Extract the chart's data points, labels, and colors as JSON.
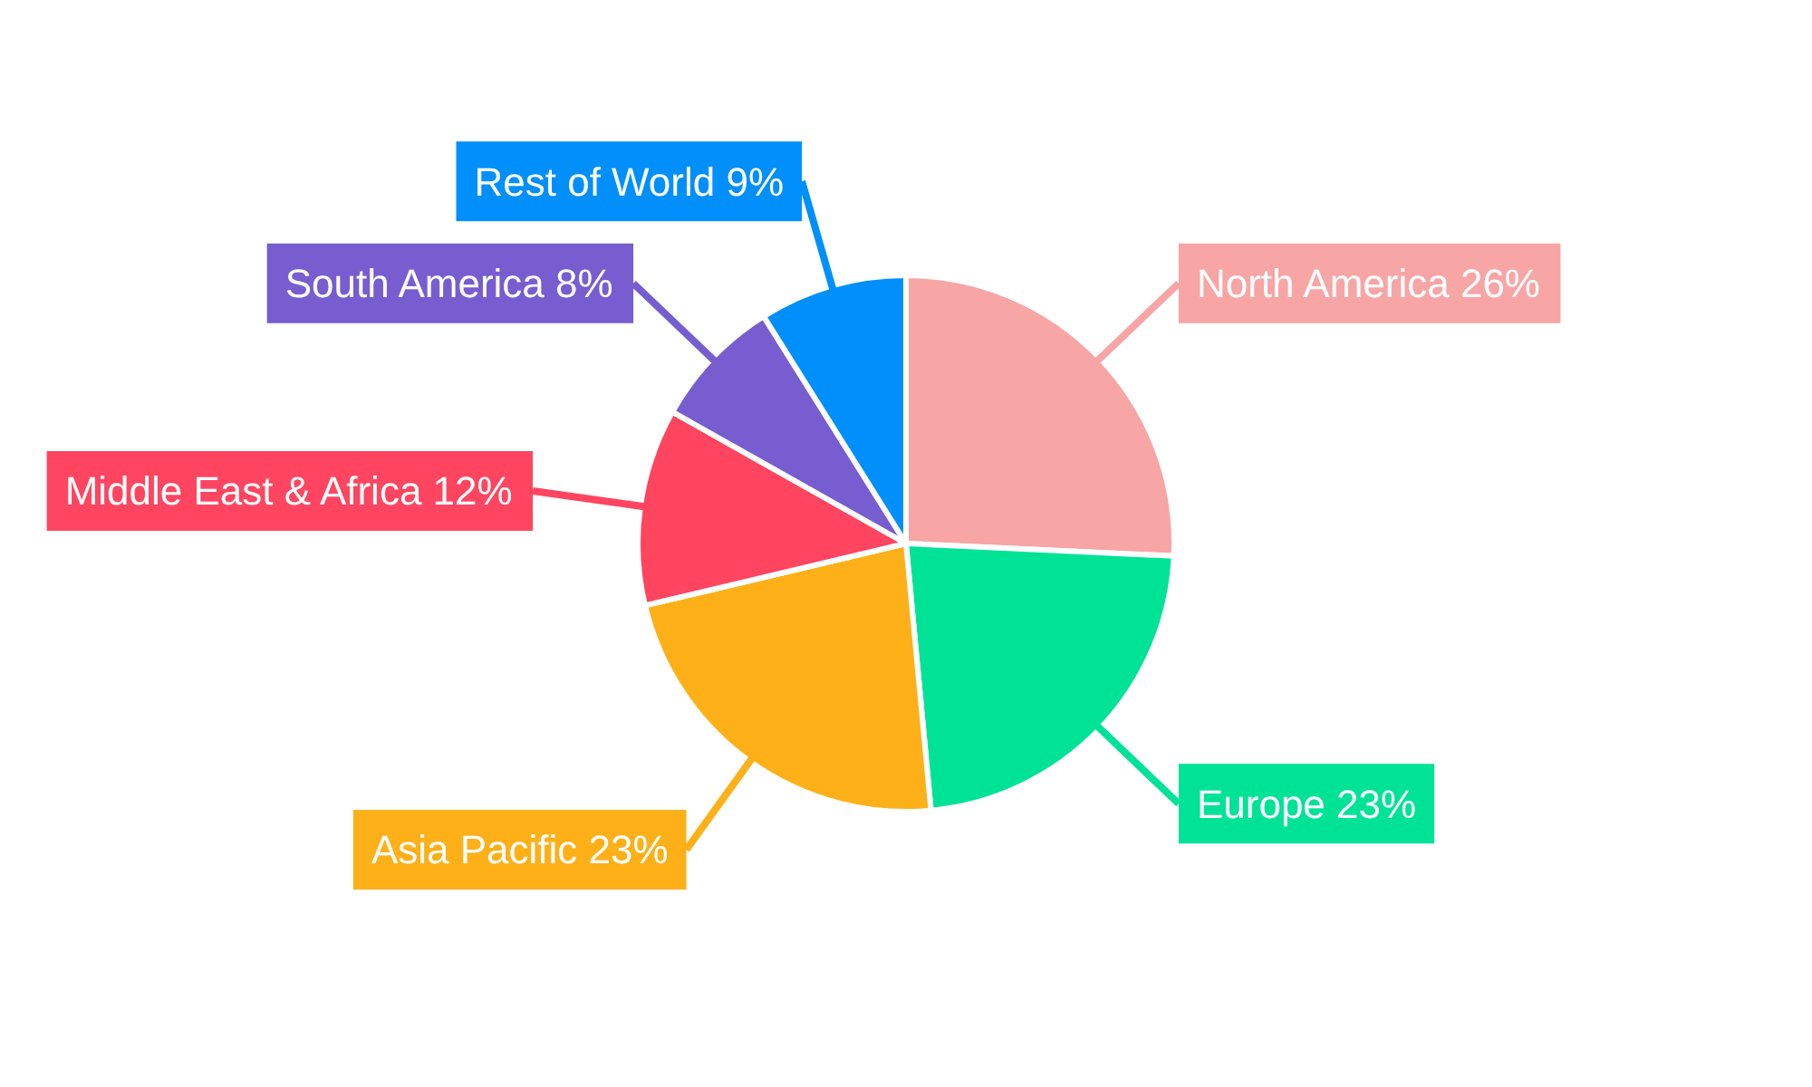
{
  "chart_data": {
    "type": "pie",
    "categories": [
      "North America",
      "Europe",
      "Asia Pacific",
      "Middle East & Africa",
      "South America",
      "Rest of World"
    ],
    "values": [
      26,
      23,
      23,
      12,
      8,
      9
    ],
    "value_labels": [
      "26%",
      "23%",
      "23%",
      "12%",
      "8%",
      "9%"
    ],
    "colors": [
      "#f8a5a5",
      "#00e396",
      "#feb019",
      "#ff4560",
      "#775dd0",
      "#008ffb"
    ]
  }
}
